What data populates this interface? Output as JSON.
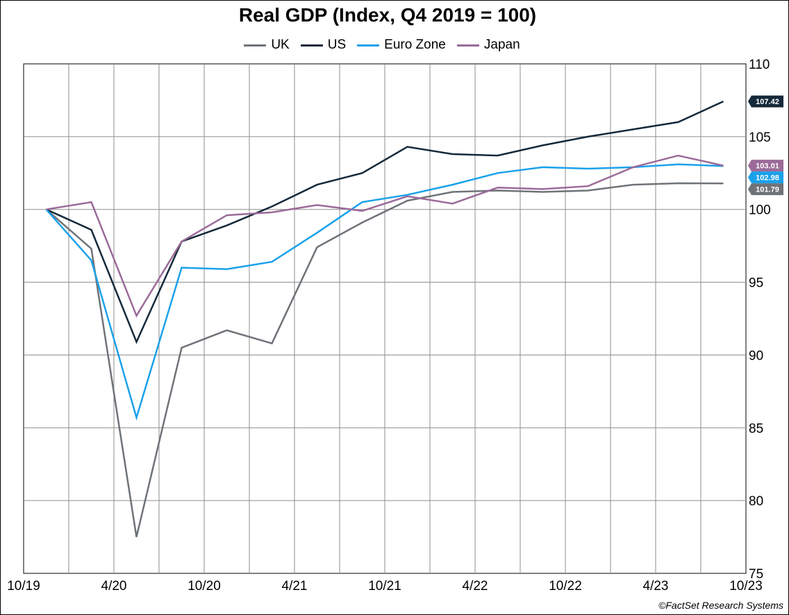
{
  "chart_data": {
    "type": "line",
    "title": "Real GDP (Index, Q4 2019 = 100)",
    "x_tick_labels": [
      "10/19",
      "4/20",
      "10/20",
      "4/21",
      "10/21",
      "4/22",
      "10/22",
      "4/23",
      "10/23"
    ],
    "x": [
      "Q4 2019",
      "Q1 2020",
      "Q2 2020",
      "Q3 2020",
      "Q4 2020",
      "Q1 2021",
      "Q2 2021",
      "Q3 2021",
      "Q4 2021",
      "Q1 2022",
      "Q2 2022",
      "Q3 2022",
      "Q4 2022",
      "Q1 2023",
      "Q2 2023",
      "Q3 2023"
    ],
    "ylim": [
      75,
      110
    ],
    "y_ticks": [
      75,
      80,
      85,
      90,
      95,
      100,
      105,
      110
    ],
    "y_axis_side": "right",
    "grid": true,
    "legend_position": "top-center",
    "series": [
      {
        "name": "UK",
        "color": "#6e7378",
        "values": [
          100,
          97.3,
          77.5,
          90.5,
          91.7,
          90.8,
          97.4,
          99.1,
          100.6,
          101.2,
          101.3,
          101.2,
          101.3,
          101.7,
          101.8,
          101.79
        ],
        "end_label": "101.79"
      },
      {
        "name": "US",
        "color": "#14293a",
        "values": [
          100,
          98.6,
          90.9,
          97.8,
          98.9,
          100.2,
          101.7,
          102.5,
          104.3,
          103.8,
          103.7,
          104.4,
          105.0,
          105.5,
          106.0,
          107.42
        ],
        "end_label": "107.42"
      },
      {
        "name": "Euro Zone",
        "color": "#1aa1ea",
        "values": [
          100,
          96.5,
          85.7,
          96.0,
          95.9,
          96.4,
          98.4,
          100.5,
          101.0,
          101.7,
          102.5,
          102.9,
          102.8,
          102.9,
          103.1,
          102.98
        ],
        "end_label": "102.98"
      },
      {
        "name": "Japan",
        "color": "#9b6a99",
        "values": [
          100,
          100.5,
          92.7,
          97.8,
          99.6,
          99.8,
          100.3,
          99.9,
          100.9,
          100.4,
          101.5,
          101.4,
          101.6,
          102.9,
          103.7,
          103.01
        ],
        "end_label": "103.01"
      }
    ]
  },
  "credit": "©FactSet Research Systems"
}
